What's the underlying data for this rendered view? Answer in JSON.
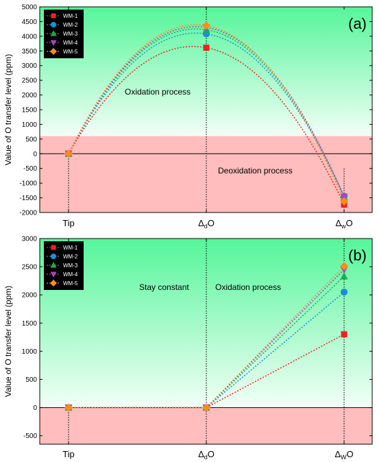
{
  "chart_data": [
    {
      "type": "line",
      "panel_label": "(a)",
      "ylabel": "Value of O transfer level (ppm)",
      "ylim": [
        -2000,
        5000
      ],
      "yticks": [
        -2000,
        -1500,
        -1000,
        -500,
        0,
        500,
        1000,
        1500,
        2000,
        2500,
        3000,
        3500,
        4000,
        4500,
        5000
      ],
      "categories": [
        "Tip",
        "ΔdO",
        "ΔwO"
      ],
      "category_main": [
        "Tip",
        "Δ",
        "Δ"
      ],
      "category_sub": [
        "",
        "d",
        "w"
      ],
      "category_tail": [
        "",
        "O",
        "O"
      ],
      "category_values": [
        0,
        1,
        2
      ],
      "curve": "quadratic",
      "green_region_from": 600,
      "annotations": [
        "Oxidation process",
        "Deoxidation process"
      ],
      "series": [
        {
          "name": "WM-1",
          "values": [
            0,
            3610,
            -1730
          ]
        },
        {
          "name": "WM-2",
          "values": [
            0,
            4080,
            -1450
          ]
        },
        {
          "name": "WM-3",
          "values": [
            0,
            4220,
            -1480
          ]
        },
        {
          "name": "WM-4",
          "values": [
            0,
            4300,
            -1460
          ]
        },
        {
          "name": "WM-5",
          "values": [
            0,
            4360,
            -1620
          ]
        }
      ]
    },
    {
      "type": "line",
      "panel_label": "(b)",
      "ylabel": "Value of O transfer level (ppm)",
      "ylim": [
        -650,
        3000
      ],
      "yticks": [
        -500,
        0,
        500,
        1000,
        1500,
        2000,
        2500,
        3000
      ],
      "categories": [
        "Tip",
        "ΔdO",
        "ΔWO"
      ],
      "category_main": [
        "Tip",
        "Δ",
        "Δ"
      ],
      "category_sub": [
        "",
        "d",
        "W"
      ],
      "category_tail": [
        "",
        "O",
        "O"
      ],
      "category_values": [
        0,
        1,
        2
      ],
      "curve": "linear",
      "green_region_from": 0,
      "annotations": [
        "Stay constant",
        "Oxidation process"
      ],
      "series": [
        {
          "name": "WM-1",
          "values": [
            0,
            0,
            1300
          ]
        },
        {
          "name": "WM-2",
          "values": [
            0,
            0,
            2050
          ]
        },
        {
          "name": "WM-3",
          "values": [
            0,
            0,
            2330
          ]
        },
        {
          "name": "WM-4",
          "values": [
            0,
            0,
            2450
          ]
        },
        {
          "name": "WM-5",
          "values": [
            0,
            0,
            2510
          ]
        }
      ]
    }
  ],
  "series_style": [
    {
      "name": "WM-1",
      "color": "#ee2222",
      "marker": "square"
    },
    {
      "name": "WM-2",
      "color": "#1a8fd6",
      "marker": "circle"
    },
    {
      "name": "WM-3",
      "color": "#22aa55",
      "marker": "triangle-up"
    },
    {
      "name": "WM-4",
      "color": "#aa44bb",
      "marker": "triangle-down"
    },
    {
      "name": "WM-5",
      "color": "#ff8c1a",
      "marker": "diamond"
    }
  ],
  "colors": {
    "green_top": "#55f59a",
    "green_bottom": "#f2fff6",
    "red_region": "#ffbdbd",
    "legend_bg": "#000000"
  }
}
